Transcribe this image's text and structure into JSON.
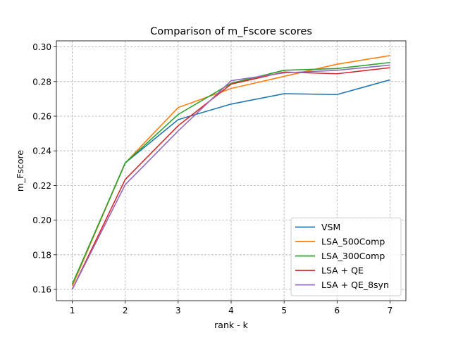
{
  "chart_data": {
    "type": "line",
    "title": "Comparison of m_Fscore scores",
    "xlabel": "rank - k",
    "ylabel": "m_Fscore",
    "x": [
      1,
      2,
      3,
      4,
      5,
      6,
      7
    ],
    "xlim": [
      0.7,
      7.3
    ],
    "ylim": [
      0.1535,
      0.3035
    ],
    "xticks": [
      1,
      2,
      3,
      4,
      5,
      6,
      7
    ],
    "yticks": [
      0.16,
      0.18,
      0.2,
      0.22,
      0.24,
      0.26,
      0.28,
      0.3
    ],
    "grid": true,
    "legend_position": "lower-right",
    "series": [
      {
        "name": "VSM",
        "color": "#1f77b4",
        "values": [
          0.162,
          0.233,
          0.258,
          0.267,
          0.273,
          0.2725,
          0.281
        ]
      },
      {
        "name": "LSA_500Comp",
        "color": "#ff7f0e",
        "values": [
          0.162,
          0.233,
          0.265,
          0.276,
          0.283,
          0.29,
          0.295
        ]
      },
      {
        "name": "LSA_300Comp",
        "color": "#2ca02c",
        "values": [
          0.163,
          0.233,
          0.261,
          0.279,
          0.2865,
          0.2875,
          0.291
        ]
      },
      {
        "name": "LSA + QE",
        "color": "#d62728",
        "values": [
          0.16,
          0.2235,
          0.2545,
          0.2785,
          0.2855,
          0.2845,
          0.288
        ]
      },
      {
        "name": "LSA + QE_8syn",
        "color": "#9467bd",
        "values": [
          0.16,
          0.2205,
          0.2515,
          0.2805,
          0.285,
          0.2865,
          0.2895
        ]
      }
    ]
  }
}
